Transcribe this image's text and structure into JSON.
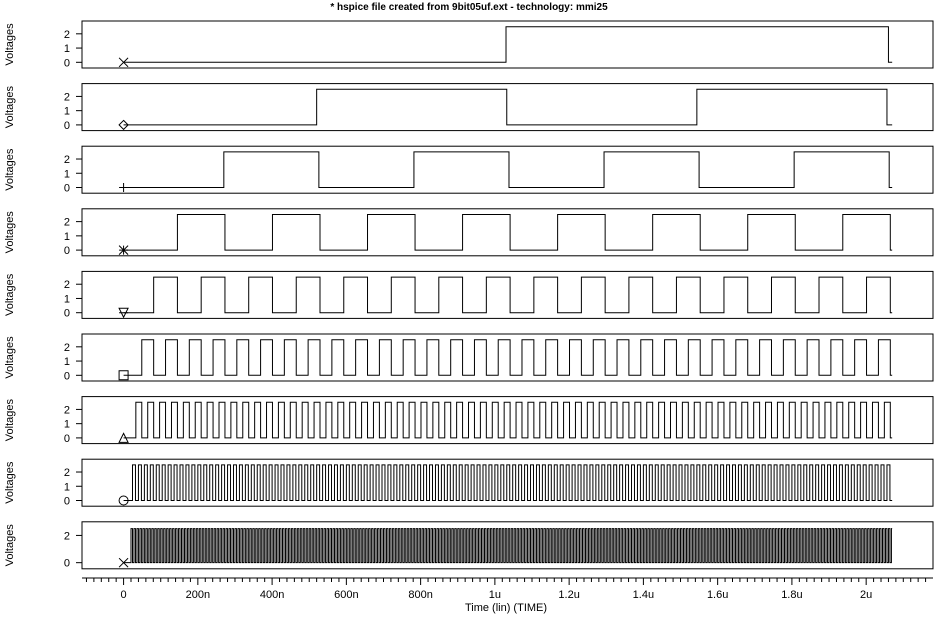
{
  "chart_data": {
    "type": "line",
    "title": "* hspice file created from 9bit05uf.ext  - technology: mmi25",
    "xlabel": "Time (lin) (TIME)",
    "x_unit": "s",
    "xlim": [
      -1.12e-07,
      2.18e-06
    ],
    "x_tick_labels": [
      {
        "value": 0,
        "label": "0"
      },
      {
        "value": 2e-07,
        "label": "200n"
      },
      {
        "value": 4e-07,
        "label": "400n"
      },
      {
        "value": 6e-07,
        "label": "600n"
      },
      {
        "value": 8e-07,
        "label": "800n"
      },
      {
        "value": 1e-06,
        "label": "1u"
      },
      {
        "value": 1.2e-06,
        "label": "1.2u"
      },
      {
        "value": 1.4e-06,
        "label": "1.4u"
      },
      {
        "value": 1.6e-06,
        "label": "1.6u"
      },
      {
        "value": 1.8e-06,
        "label": "1.8u"
      },
      {
        "value": 2e-06,
        "label": "2u"
      }
    ],
    "signal_end": 2.07e-06,
    "logic_high": 2.5,
    "grid": false,
    "legend": "marker at start of each trace",
    "panels": [
      {
        "ylabel": "Voltages",
        "ylim": [
          -0.4,
          2.9
        ],
        "yticks": [
          "0",
          "1",
          "2"
        ],
        "marker": "x",
        "first_edge": 1.03e-06,
        "half_period": 1.03e-06
      },
      {
        "ylabel": "Voltages",
        "ylim": [
          -0.4,
          2.9
        ],
        "yticks": [
          "0",
          "1",
          "2"
        ],
        "marker": "diamond",
        "first_edge": 5.2e-07,
        "half_period": 5.12e-07
      },
      {
        "ylabel": "Voltages",
        "ylim": [
          -0.4,
          2.9
        ],
        "yticks": [
          "0",
          "1",
          "2"
        ],
        "marker": "plus",
        "first_edge": 2.7e-07,
        "half_period": 2.56e-07
      },
      {
        "ylabel": "Voltages",
        "ylim": [
          -0.4,
          2.9
        ],
        "yticks": [
          "0",
          "1",
          "2"
        ],
        "marker": "asterisk",
        "first_edge": 1.45e-07,
        "half_period": 1.28e-07
      },
      {
        "ylabel": "Voltages",
        "ylim": [
          -0.4,
          2.9
        ],
        "yticks": [
          "0",
          "1",
          "2"
        ],
        "marker": "triangle-down",
        "first_edge": 8.1e-08,
        "half_period": 6.4e-08
      },
      {
        "ylabel": "Voltages",
        "ylim": [
          -0.4,
          2.9
        ],
        "yticks": [
          "0",
          "1",
          "2"
        ],
        "marker": "square",
        "first_edge": 4.9e-08,
        "half_period": 3.2e-08
      },
      {
        "ylabel": "Voltages",
        "ylim": [
          -0.4,
          2.9
        ],
        "yticks": [
          "0",
          "1",
          "2"
        ],
        "marker": "triangle-up",
        "first_edge": 3.3e-08,
        "half_period": 1.6e-08
      },
      {
        "ylabel": "Voltages",
        "ylim": [
          -0.4,
          2.9
        ],
        "yticks": [
          "0",
          "1",
          "2"
        ],
        "marker": "circle",
        "first_edge": 2.4e-08,
        "half_period": 8e-09
      },
      {
        "ylabel": "Voltages",
        "ylim": [
          -0.45,
          3.0
        ],
        "yticks": [
          "0",
          "2"
        ],
        "marker": "x",
        "first_edge": 2e-08,
        "half_period": 4e-09
      }
    ]
  }
}
